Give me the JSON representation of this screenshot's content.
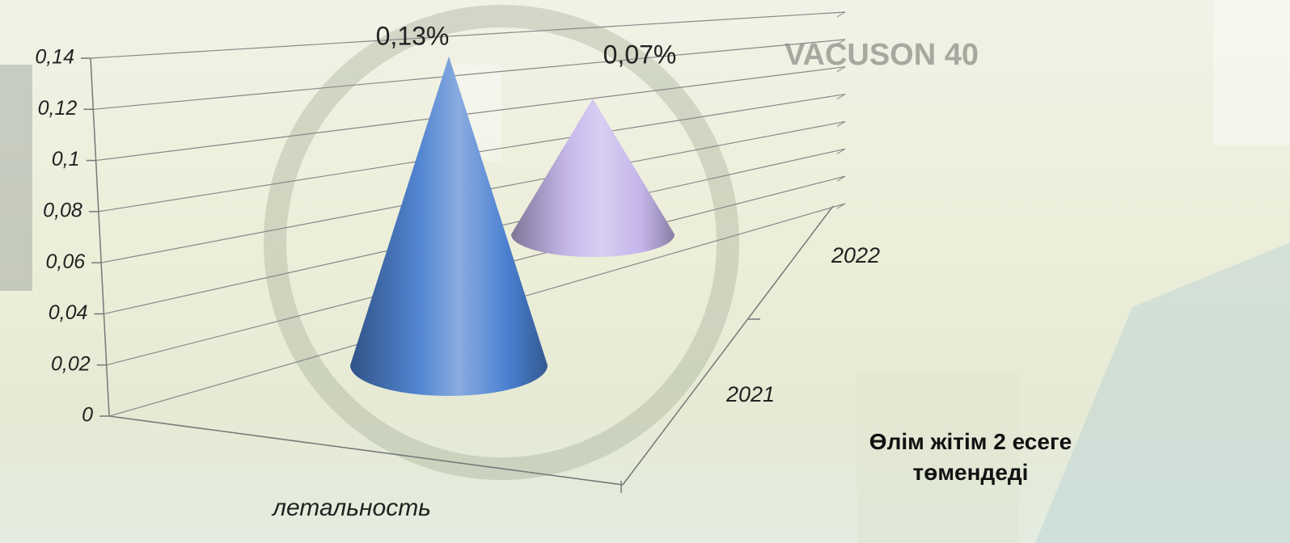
{
  "chart_data": {
    "type": "cone",
    "categories": [
      "летальность"
    ],
    "series": [
      {
        "name": "2021",
        "color": "#4a7fd0",
        "values": [
          0.13
        ],
        "value_labels": [
          "0,13%"
        ]
      },
      {
        "name": "2022",
        "color": "#c4b4ea",
        "values": [
          0.07
        ],
        "value_labels": [
          "0,07%"
        ]
      }
    ],
    "ylim": [
      0,
      0.14
    ],
    "yticks": [
      0,
      {
        "value": 0.02,
        "label": "0,02"
      },
      {
        "value": 0.04,
        "label": "0,04"
      },
      {
        "value": 0.06,
        "label": "0,06"
      },
      {
        "value": 0.08,
        "label": "0,08"
      },
      {
        "value": 0.1,
        "label": "0,1"
      },
      {
        "value": 0.12,
        "label": "0,12"
      },
      {
        "value": 0.14,
        "label": "0,14"
      }
    ],
    "grid": true,
    "annotation": "Өлім жітім 2 есеге төмендеді"
  }
}
